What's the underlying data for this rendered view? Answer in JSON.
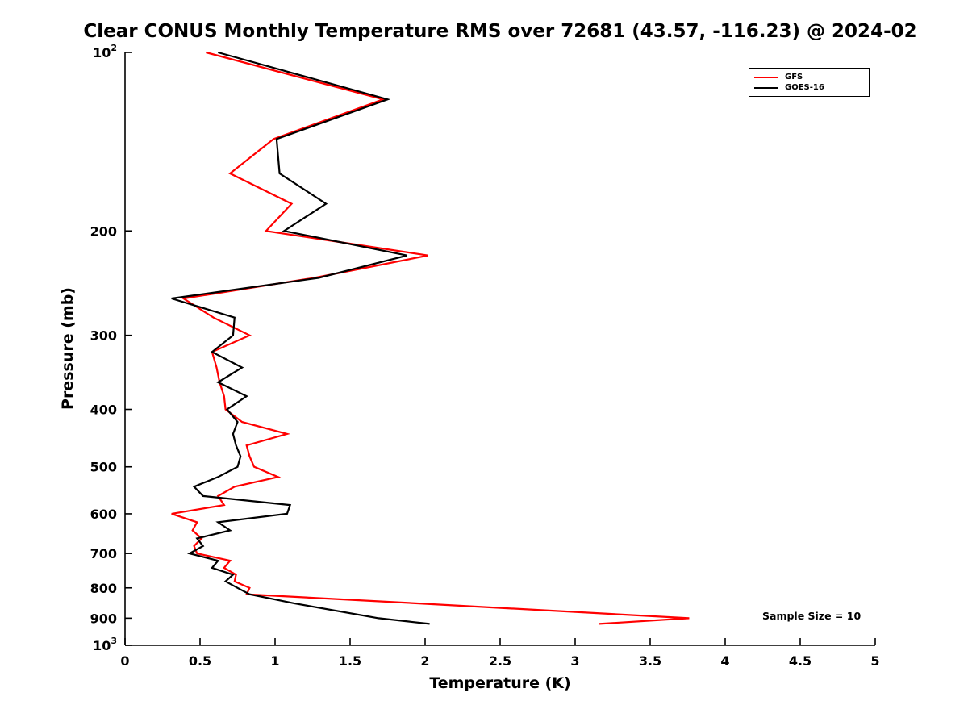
{
  "title": "Clear CONUS Monthly Temperature RMS over 72681 (43.57, -116.23) @ 2024-02",
  "annotation": "Sample Size = 10",
  "legend": {
    "entries": [
      {
        "label": "GFS",
        "color": "#ff0000"
      },
      {
        "label": "GOES-16",
        "color": "#000000"
      }
    ]
  },
  "chart_data": {
    "type": "line",
    "title": "Clear CONUS Monthly Temperature RMS over 72681 (43.57, -116.23) @ 2024-02",
    "xlabel": "Temperature (K)",
    "ylabel": "Pressure (mb)",
    "x_range": [
      0,
      5
    ],
    "y_range_pressure_mb": [
      100,
      1000
    ],
    "y_scale": "log10",
    "y_direction": "reversed (100 mb at top, 1000 mb at bottom)",
    "grid": false,
    "legend_position": "top-right",
    "xticks": [
      0,
      0.5,
      1,
      1.5,
      2,
      2.5,
      3,
      3.5,
      4,
      4.5,
      5
    ],
    "xtick_labels": [
      "0",
      "0.5",
      "1",
      "1.5",
      "2",
      "2.5",
      "3",
      "3.5",
      "4",
      "4.5",
      "5"
    ],
    "yticks": [
      100,
      200,
      300,
      400,
      500,
      600,
      700,
      800,
      900,
      1000
    ],
    "ytick_labels": [
      "10^2",
      "200",
      "300",
      "400",
      "500",
      "600",
      "700",
      "800",
      "900",
      "10^3"
    ],
    "annotation": "Sample Size = 10",
    "pressure_mb": [
      100,
      120,
      140,
      160,
      180,
      200,
      220,
      240,
      260,
      280,
      300,
      320,
      340,
      360,
      380,
      400,
      420,
      440,
      460,
      480,
      500,
      520,
      540,
      560,
      580,
      600,
      620,
      640,
      660,
      680,
      700,
      720,
      740,
      760,
      780,
      800,
      820,
      850,
      900,
      920
    ],
    "series": [
      {
        "name": "GFS",
        "color": "#ff0000",
        "values": [
          0.54,
          1.72,
          0.99,
          0.7,
          1.11,
          0.94,
          2.02,
          1.26,
          0.39,
          0.59,
          0.83,
          0.58,
          0.61,
          0.63,
          0.66,
          0.67,
          0.78,
          1.08,
          0.81,
          0.83,
          0.86,
          1.02,
          0.73,
          0.62,
          0.66,
          0.31,
          0.48,
          0.45,
          0.51,
          0.46,
          0.48,
          0.7,
          0.66,
          0.74,
          0.73,
          0.83,
          0.81,
          1.96,
          3.76,
          3.16
        ]
      },
      {
        "name": "GOES-16",
        "color": "#000000",
        "values": [
          0.62,
          1.75,
          1.01,
          1.03,
          1.34,
          1.06,
          1.88,
          1.29,
          0.31,
          0.73,
          0.72,
          0.58,
          0.78,
          0.62,
          0.81,
          0.68,
          0.75,
          0.72,
          0.74,
          0.77,
          0.75,
          0.62,
          0.46,
          0.52,
          1.1,
          1.08,
          0.62,
          0.7,
          0.48,
          0.52,
          0.43,
          0.62,
          0.58,
          0.72,
          0.67,
          0.75,
          0.83,
          1.13,
          1.69,
          2.03
        ]
      }
    ]
  }
}
